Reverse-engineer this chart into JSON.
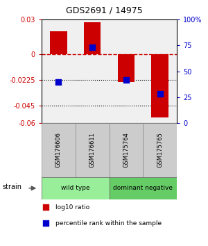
{
  "title": "GDS2691 / 14975",
  "samples": [
    "GSM176606",
    "GSM176611",
    "GSM175764",
    "GSM175765"
  ],
  "log10_ratio": [
    0.02,
    0.028,
    -0.024,
    -0.055
  ],
  "percentile_rank": [
    40,
    73,
    42,
    28
  ],
  "left_ylim": [
    0.03,
    -0.06
  ],
  "left_yticks": [
    0.03,
    0,
    -0.0225,
    -0.045,
    -0.06
  ],
  "left_yticklabels": [
    "0.03",
    "0",
    "-0.0225",
    "-0.045",
    "-0.06"
  ],
  "right_ylim": [
    100,
    0
  ],
  "right_yticks": [
    100,
    75,
    50,
    25,
    0
  ],
  "right_yticklabels": [
    "100%",
    "75",
    "50",
    "25",
    "0"
  ],
  "bar_color": "#cc0000",
  "dot_color": "#0000cc",
  "hline_y": 0,
  "dotted_lines": [
    -0.0225,
    -0.045
  ],
  "groups": [
    {
      "label": "wild type",
      "indices": [
        0,
        1
      ],
      "color": "#99ee99"
    },
    {
      "label": "dominant negative",
      "indices": [
        2,
        3
      ],
      "color": "#66cc66"
    }
  ],
  "strain_label": "strain",
  "legend_bar_label": "log10 ratio",
  "legend_dot_label": "percentile rank within the sample",
  "bar_width": 0.5,
  "background_color": "#ffffff"
}
